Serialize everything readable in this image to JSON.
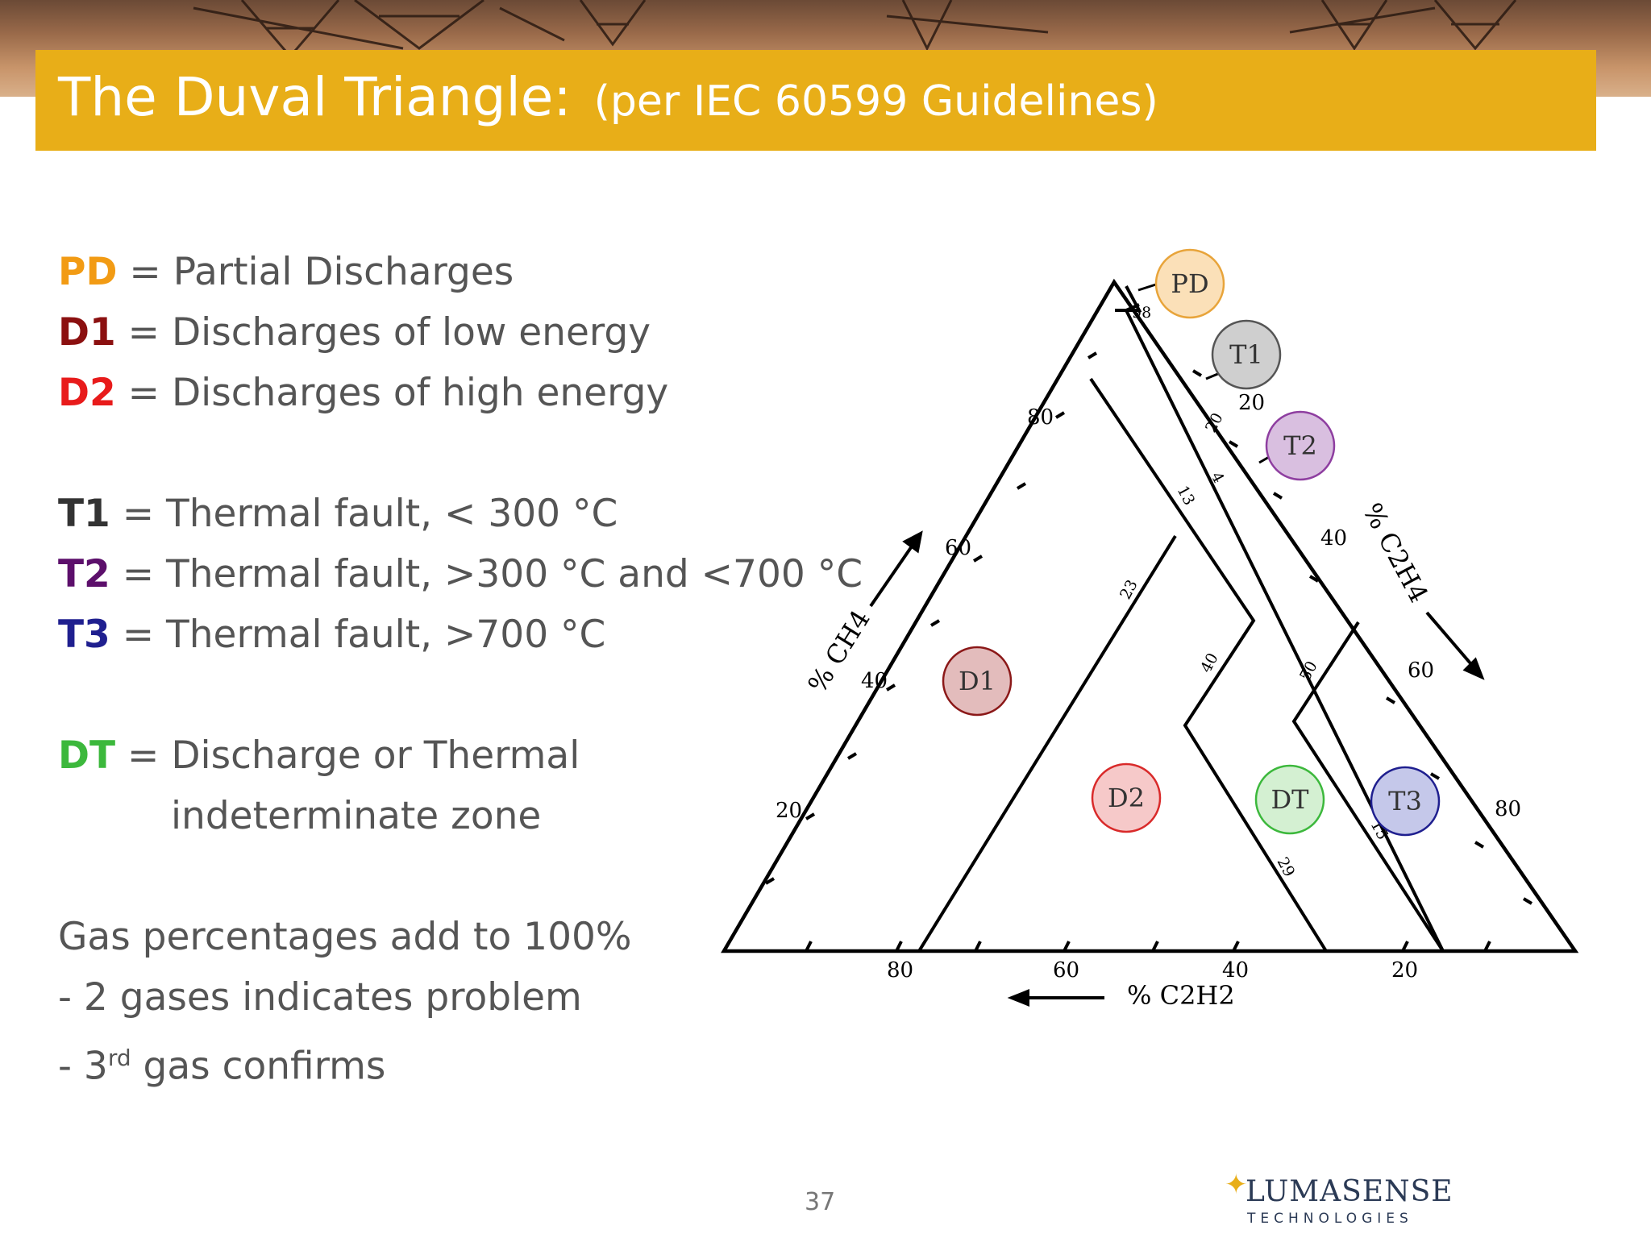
{
  "slide": {
    "title": "The Duval Triangle:",
    "subtitle": "(per IEC 60599 Guidelines)",
    "page_number": "37"
  },
  "legend": [
    {
      "code": "PD",
      "color": "#f29b14",
      "text": " = Partial Discharges"
    },
    {
      "code": "D1",
      "color": "#8b1010",
      "text": " = Discharges of low energy"
    },
    {
      "code": "D2",
      "color": "#e81b1b",
      "text": " = Discharges of high energy"
    },
    {
      "code": "T1",
      "color": "#333333",
      "text": " = Thermal fault, < 300 °C"
    },
    {
      "code": "T2",
      "color": "#5c0f6b",
      "text": " = Thermal fault, >300 °C and <700 °C"
    },
    {
      "code": "T3",
      "color": "#1f1f8f",
      "text": " = Thermal fault, >700 °C"
    },
    {
      "code": "DT",
      "color": "#3cb83c",
      "text": " = Discharge or Thermal"
    }
  ],
  "legend_dt_line2": "indeterminate zone",
  "notes": {
    "line1": "Gas percentages add to 100%",
    "line2": "- 2 gases indicates problem",
    "line3_prefix": "- 3",
    "line3_sup": "rd",
    "line3_suffix": " gas confirms"
  },
  "diagram": {
    "axis_ch4": "% CH4",
    "axis_c2h4": "% C2H4",
    "axis_c2h2": "% C2H2",
    "left_ticks": [
      "80",
      "60",
      "40",
      "20"
    ],
    "right_ticks": [
      "20",
      "40",
      "60",
      "80"
    ],
    "bottom_ticks": [
      "80",
      "60",
      "40",
      "20"
    ],
    "boundary_labels": [
      "98",
      "20",
      "4",
      "13",
      "23",
      "40",
      "50",
      "15",
      "29"
    ],
    "zones": [
      {
        "id": "PD",
        "label": "PD",
        "fill": "#fbe0b8",
        "stroke": "#e8a43a"
      },
      {
        "id": "T1",
        "label": "T1",
        "fill": "#cfcfcf",
        "stroke": "#555555"
      },
      {
        "id": "T2",
        "label": "T2",
        "fill": "#d9bfe0",
        "stroke": "#8e3ea0"
      },
      {
        "id": "D1",
        "label": "D1",
        "fill": "#e3bcbc",
        "stroke": "#8b1818"
      },
      {
        "id": "D2",
        "label": "D2",
        "fill": "#f6c9c9",
        "stroke": "#d92a2a"
      },
      {
        "id": "DT",
        "label": "DT",
        "fill": "#d4f0d2",
        "stroke": "#3cb83c"
      },
      {
        "id": "T3",
        "label": "T3",
        "fill": "#c5c8ea",
        "stroke": "#1f1f8f"
      }
    ]
  },
  "logo": {
    "name": "LUMASENSE",
    "sub": "TECHNOLOGIES"
  }
}
